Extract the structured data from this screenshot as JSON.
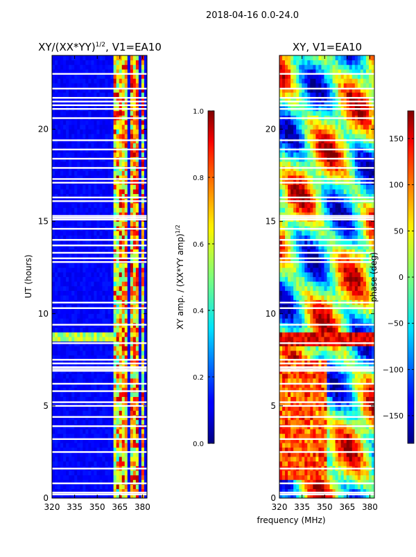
{
  "figure": {
    "suptitle": "2018-04-16 0.0-24.0",
    "shared_xlabel": "frequency (MHz)"
  },
  "chart_data": [
    {
      "type": "heatmap",
      "title": "XY/(XX*YY)",
      "title_exponent": "1/2",
      "title_suffix": ", V1=EA10",
      "xlabel": "",
      "ylabel": "UT (hours)",
      "xlim": [
        320,
        383
      ],
      "ylim": [
        0,
        24
      ],
      "xticks": [
        320,
        335,
        350,
        365,
        380
      ],
      "yticks": [
        0,
        5,
        10,
        15,
        20
      ],
      "colormap": "jet",
      "colorbar": {
        "label": "XY amp. / (XX*YY amp)",
        "label_exponent": "1/2",
        "range": [
          0.0,
          1.0
        ],
        "ticks": [
          "0.0",
          "0.2",
          "0.4",
          "0.6",
          "0.8",
          "1.0"
        ],
        "tick_values": [
          0.0,
          0.2,
          0.4,
          0.6,
          0.8,
          1.0
        ]
      },
      "band_columns_mhz": [
        362,
        366,
        369,
        373,
        376,
        380
      ],
      "flagged_ut_hours": [
        0.2,
        0.3,
        0.8,
        1.6,
        2.5,
        3.2,
        3.9,
        4.4,
        5.0,
        5.2,
        5.8,
        6.2,
        6.9,
        7.0,
        7.1,
        7.3,
        7.5,
        8.4,
        9.4,
        10.3,
        10.6,
        12.8,
        13.0,
        13.3,
        13.7,
        14.0,
        14.6,
        15.1,
        15.2,
        15.3,
        16.1,
        16.3,
        17.1,
        17.3,
        17.9,
        18.4,
        18.9,
        19.4,
        20.6,
        21.1,
        21.3,
        21.5,
        21.7,
        22.2,
        23.0
      ]
    },
    {
      "type": "heatmap",
      "title": "XY, V1=EA10",
      "xlabel": "",
      "ylabel": "",
      "xlim": [
        320,
        383
      ],
      "ylim": [
        0,
        24
      ],
      "xticks": [
        320,
        335,
        350,
        365,
        380
      ],
      "yticks": [
        0,
        5,
        10,
        15,
        20
      ],
      "colormap": "jet",
      "colorbar": {
        "label": "phase (deg)",
        "range": [
          -180,
          180
        ],
        "ticks": [
          "−150",
          "−100",
          "−50",
          "0",
          "50",
          "100",
          "150"
        ],
        "tick_values": [
          -150,
          -100,
          -50,
          0,
          50,
          100,
          150
        ]
      },
      "flagged_ut_hours": [
        0.2,
        0.3,
        0.8,
        1.6,
        2.5,
        3.2,
        3.9,
        4.4,
        5.0,
        5.2,
        5.8,
        6.2,
        6.9,
        7.0,
        7.1,
        7.3,
        7.5,
        8.4,
        9.4,
        10.3,
        10.6,
        12.8,
        13.0,
        13.3,
        13.7,
        14.0,
        14.6,
        15.1,
        15.2,
        15.3,
        16.1,
        16.3,
        17.1,
        17.3,
        17.9,
        18.4,
        18.9,
        19.4,
        20.6,
        21.1,
        21.3,
        21.5,
        21.7,
        22.2,
        23.0
      ]
    }
  ]
}
